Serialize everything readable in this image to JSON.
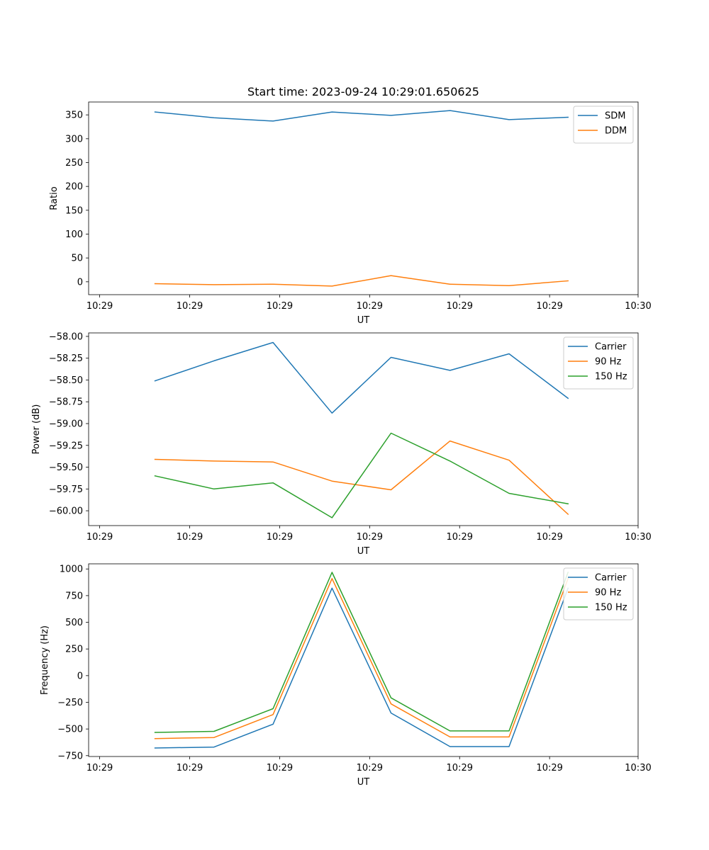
{
  "chart_data": [
    {
      "type": "line",
      "title": "Start time: 2023-09-24 10:29:01.650625",
      "xlabel": "UT",
      "ylabel": "Ratio",
      "x": [
        0.75,
        1.55,
        2.35,
        3.15,
        3.95,
        4.75,
        5.55,
        6.35
      ],
      "xlim": [
        -0.15,
        7.3
      ],
      "x_ticks": [
        0,
        1.22,
        2.44,
        3.66,
        4.88,
        6.1,
        7.3
      ],
      "x_tick_labels": [
        "10:29",
        "10:29",
        "10:29",
        "10:29",
        "10:29",
        "10:29",
        "10:30"
      ],
      "ylim": [
        -27,
        377
      ],
      "y_ticks": [
        0,
        50,
        100,
        150,
        200,
        250,
        300,
        350
      ],
      "legend_position": "top-right",
      "series": [
        {
          "name": "SDM",
          "color": "#1f77b4",
          "values": [
            356,
            344,
            337,
            356,
            349,
            359,
            340,
            345
          ]
        },
        {
          "name": "DDM",
          "color": "#ff7f0e",
          "values": [
            -4,
            -6,
            -5,
            -9,
            13,
            -5,
            -8,
            2
          ]
        }
      ]
    },
    {
      "type": "line",
      "title": "",
      "xlabel": "UT",
      "ylabel": "Power (dB)",
      "x": [
        0.75,
        1.55,
        2.35,
        3.15,
        3.95,
        4.75,
        5.55,
        6.35
      ],
      "xlim": [
        -0.15,
        7.3
      ],
      "x_ticks": [
        0,
        1.22,
        2.44,
        3.66,
        4.88,
        6.1,
        7.3
      ],
      "x_tick_labels": [
        "10:29",
        "10:29",
        "10:29",
        "10:29",
        "10:29",
        "10:29",
        "10:30"
      ],
      "ylim": [
        -60.17,
        -57.96
      ],
      "y_ticks": [
        -60.0,
        -59.75,
        -59.5,
        -59.25,
        -59.0,
        -58.75,
        -58.5,
        -58.25,
        -58.0
      ],
      "y_tick_labels": [
        "−60.00",
        "−59.75",
        "−59.50",
        "−59.25",
        "−59.00",
        "−58.75",
        "−58.50",
        "−58.25",
        "−58.00"
      ],
      "legend_position": "top-right",
      "series": [
        {
          "name": "Carrier",
          "color": "#1f77b4",
          "values": [
            -58.51,
            -58.28,
            -58.07,
            -58.88,
            -58.24,
            -58.39,
            -58.2,
            -58.71
          ]
        },
        {
          "name": "90 Hz",
          "color": "#ff7f0e",
          "values": [
            -59.41,
            -59.43,
            -59.44,
            -59.66,
            -59.76,
            -59.2,
            -59.42,
            -60.04
          ]
        },
        {
          "name": "150 Hz",
          "color": "#2ca02c",
          "values": [
            -59.6,
            -59.75,
            -59.68,
            -60.08,
            -59.11,
            -59.43,
            -59.8,
            -59.92
          ]
        }
      ]
    },
    {
      "type": "line",
      "title": "",
      "xlabel": "UT",
      "ylabel": "Frequency (Hz)",
      "x": [
        0.75,
        1.55,
        2.35,
        3.15,
        3.95,
        4.75,
        5.55,
        6.35
      ],
      "xlim": [
        -0.15,
        7.3
      ],
      "x_ticks": [
        0,
        1.22,
        2.44,
        3.66,
        4.88,
        6.1,
        7.3
      ],
      "x_tick_labels": [
        "10:29",
        "10:29",
        "10:29",
        "10:29",
        "10:29",
        "10:29",
        "10:30"
      ],
      "ylim": [
        -758,
        1048
      ],
      "y_ticks": [
        -750,
        -500,
        -250,
        0,
        250,
        500,
        750,
        1000
      ],
      "y_tick_labels": [
        "−750",
        "−500",
        "−250",
        "0",
        "250",
        "500",
        "750",
        "1000"
      ],
      "legend_position": "top-right",
      "series": [
        {
          "name": "Carrier",
          "color": "#1f77b4",
          "values": [
            -678,
            -670,
            -455,
            820,
            -350,
            -665,
            -665,
            820
          ]
        },
        {
          "name": "90 Hz",
          "color": "#ff7f0e",
          "values": [
            -590,
            -580,
            -365,
            910,
            -265,
            -575,
            -575,
            910
          ]
        },
        {
          "name": "150 Hz",
          "color": "#2ca02c",
          "values": [
            -532,
            -522,
            -310,
            968,
            -208,
            -518,
            -518,
            968
          ]
        }
      ]
    }
  ]
}
